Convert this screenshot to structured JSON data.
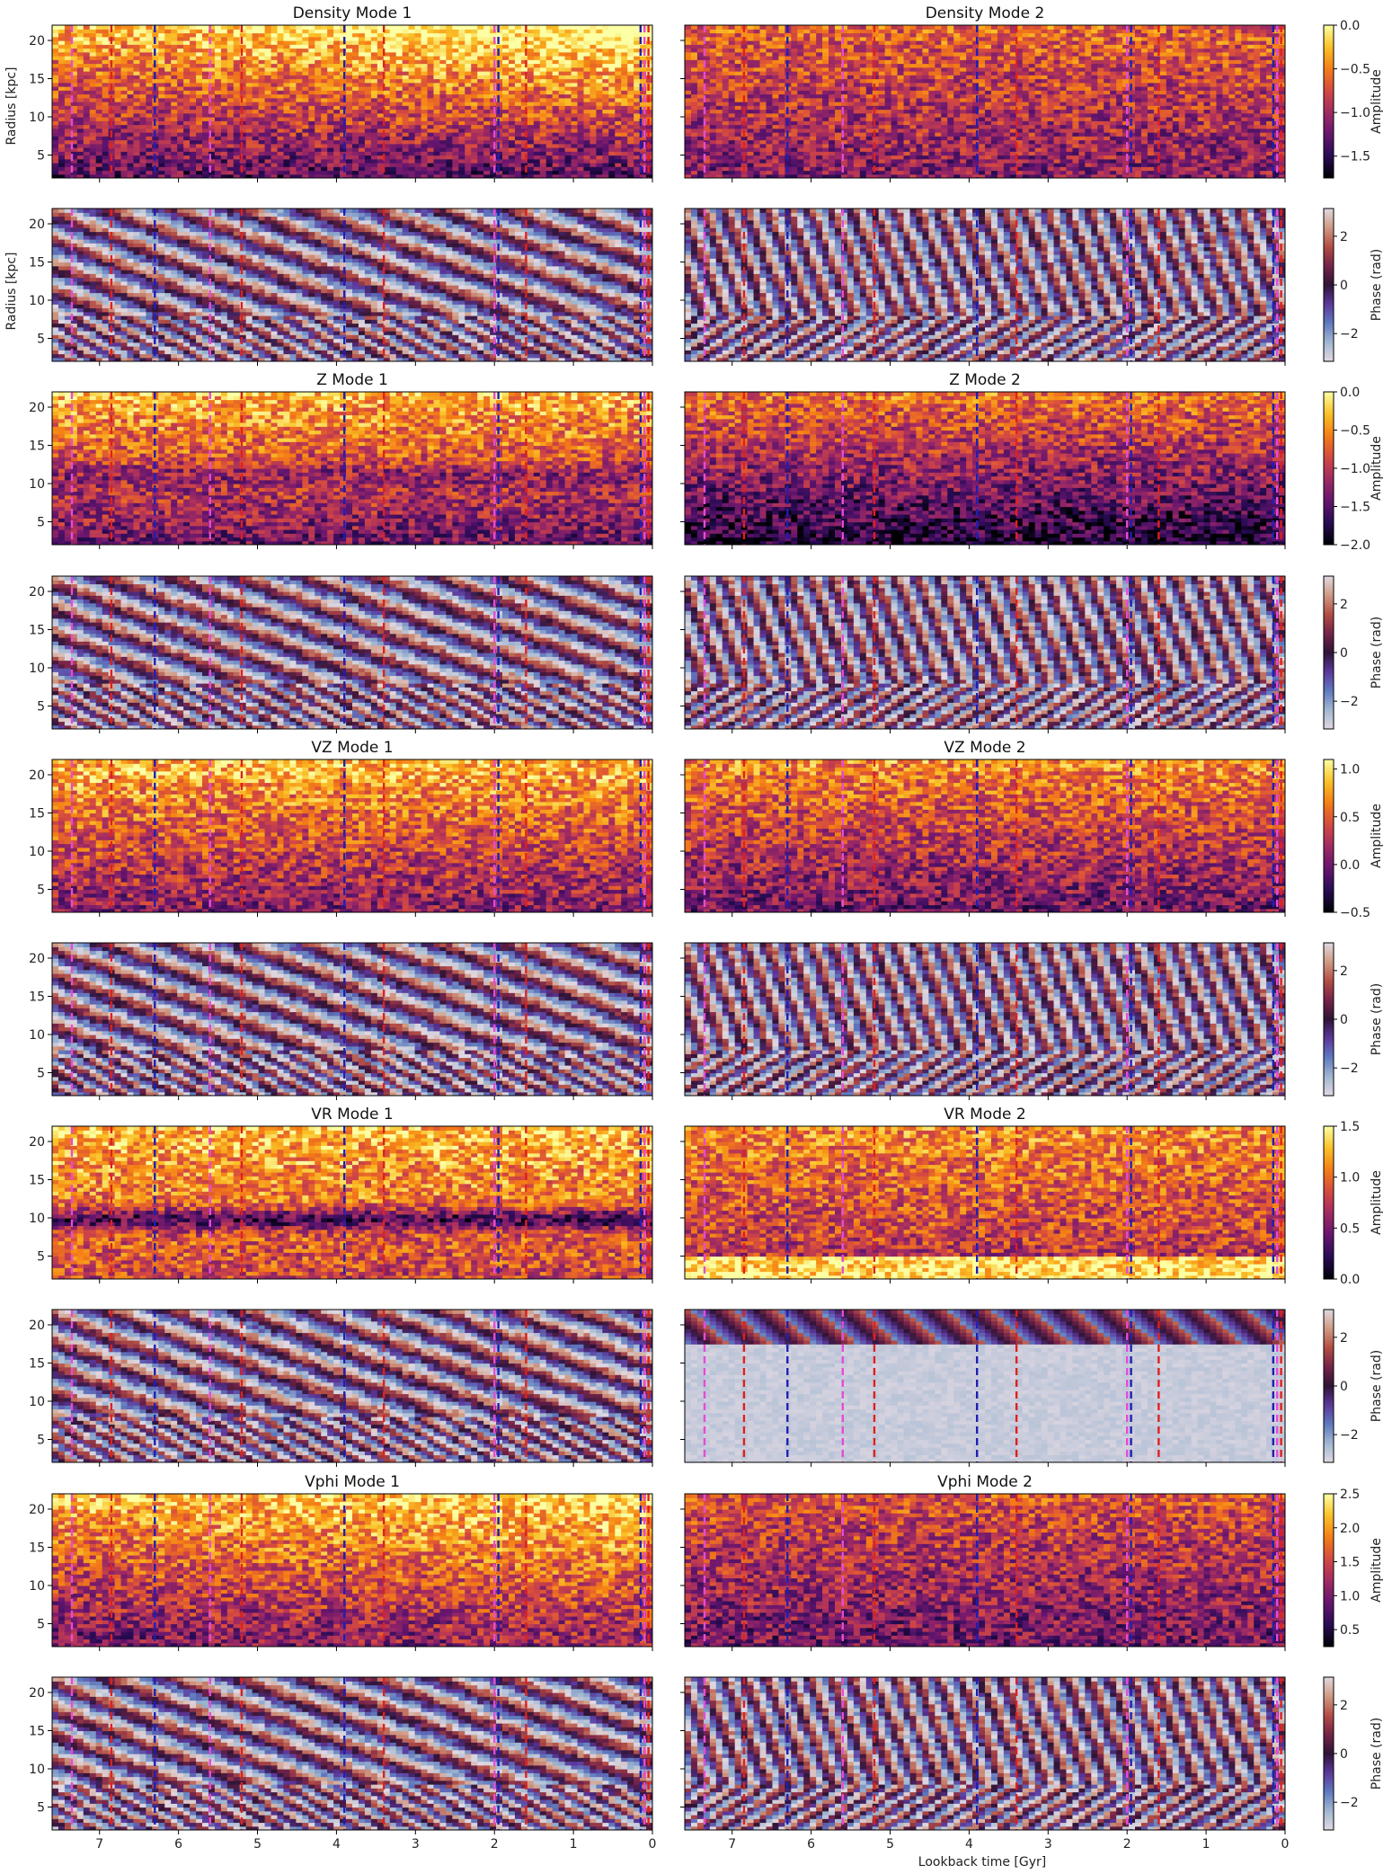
{
  "figure": {
    "xlabel": "Lookback time [Gyr]",
    "ylabel": "Radius [kpc]"
  },
  "chart_data": {
    "type": "heatmap",
    "grid": "off",
    "xlim": [
      7.6,
      0
    ],
    "ylim": [
      2,
      22
    ],
    "xticks": [
      7,
      6,
      5,
      4,
      3,
      2,
      1,
      0
    ],
    "yticks": [
      5,
      10,
      15,
      20
    ],
    "event_lines": {
      "blue": {
        "color": "#1f1fb4",
        "times": [
          6.3,
          3.9,
          1.95,
          0.15
        ]
      },
      "red": {
        "color": "#e0201c",
        "times": [
          6.85,
          5.2,
          3.4,
          1.6,
          0.05
        ]
      },
      "magenta": {
        "color": "#e64bd6",
        "times": [
          7.35,
          5.6,
          2.0,
          0.1
        ]
      }
    },
    "rows": [
      {
        "quantity": "Density",
        "kind": "amplitude",
        "titles": [
          "Density Mode 1",
          "Density Mode 2"
        ],
        "colorbar": {
          "label": "Amplitude",
          "range": [
            -1.75,
            0.0
          ],
          "ticks": [
            "0.0",
            "−0.5",
            "−1.0",
            "−1.5"
          ],
          "tickvals": [
            0.0,
            -0.5,
            -1.0,
            -1.5
          ],
          "cmap": "inferno"
        }
      },
      {
        "quantity": "Density",
        "kind": "phase",
        "titles": [
          "",
          ""
        ],
        "colorbar": {
          "label": "Phase (rad)",
          "range": [
            -3.14,
            3.14
          ],
          "ticks": [
            "2",
            "0",
            "−2"
          ],
          "tickvals": [
            2,
            0,
            -2
          ],
          "cmap": "twilight"
        }
      },
      {
        "quantity": "Z",
        "kind": "amplitude",
        "titles": [
          "Z Mode 1",
          "Z Mode 2"
        ],
        "colorbar": {
          "label": "Amplitude",
          "range": [
            -2.0,
            0.0
          ],
          "ticks": [
            "0.0",
            "−0.5",
            "−1.0",
            "−1.5",
            "−2.0"
          ],
          "tickvals": [
            0.0,
            -0.5,
            -1.0,
            -1.5,
            -2.0
          ],
          "cmap": "inferno"
        }
      },
      {
        "quantity": "Z",
        "kind": "phase",
        "titles": [
          "",
          ""
        ],
        "colorbar": {
          "label": "Phase (rad)",
          "range": [
            -3.14,
            3.14
          ],
          "ticks": [
            "2",
            "0",
            "−2"
          ],
          "tickvals": [
            2,
            0,
            -2
          ],
          "cmap": "twilight"
        }
      },
      {
        "quantity": "VZ",
        "kind": "amplitude",
        "titles": [
          "VZ Mode 1",
          "VZ Mode 2"
        ],
        "colorbar": {
          "label": "Amplitude",
          "range": [
            -0.5,
            1.1
          ],
          "ticks": [
            "1.0",
            "0.5",
            "0.0",
            "−0.5"
          ],
          "tickvals": [
            1.0,
            0.5,
            0.0,
            -0.5
          ],
          "cmap": "inferno"
        }
      },
      {
        "quantity": "VZ",
        "kind": "phase",
        "titles": [
          "",
          ""
        ],
        "colorbar": {
          "label": "Phase (rad)",
          "range": [
            -3.14,
            3.14
          ],
          "ticks": [
            "2",
            "0",
            "−2"
          ],
          "tickvals": [
            2,
            0,
            -2
          ],
          "cmap": "twilight"
        }
      },
      {
        "quantity": "VR",
        "kind": "amplitude",
        "titles": [
          "VR Mode 1",
          "VR Mode 2"
        ],
        "colorbar": {
          "label": "Amplitude",
          "range": [
            0.0,
            1.5
          ],
          "ticks": [
            "1.5",
            "1.0",
            "0.5",
            "0.0"
          ],
          "tickvals": [
            1.5,
            1.0,
            0.5,
            0.0
          ],
          "cmap": "inferno"
        }
      },
      {
        "quantity": "VR",
        "kind": "phase",
        "titles": [
          "",
          ""
        ],
        "colorbar": {
          "label": "Phase (rad)",
          "range": [
            -3.14,
            3.14
          ],
          "ticks": [
            "2",
            "0",
            "−2"
          ],
          "tickvals": [
            2,
            0,
            -2
          ],
          "cmap": "twilight"
        }
      },
      {
        "quantity": "Vphi",
        "kind": "amplitude",
        "titles": [
          "Vphi Mode 1",
          "Vphi Mode 2"
        ],
        "colorbar": {
          "label": "Amplitude",
          "range": [
            0.25,
            2.5
          ],
          "ticks": [
            "2.5",
            "2.0",
            "1.5",
            "1.0",
            "0.5"
          ],
          "tickvals": [
            2.5,
            2.0,
            1.5,
            1.0,
            0.5
          ],
          "cmap": "inferno"
        }
      },
      {
        "quantity": "Vphi",
        "kind": "phase",
        "titles": [
          "",
          ""
        ],
        "colorbar": {
          "label": "Phase (rad)",
          "range": [
            -3.14,
            3.14
          ],
          "ticks": [
            "2",
            "0",
            "−2"
          ],
          "tickvals": [
            2,
            0,
            -2
          ],
          "cmap": "twilight"
        }
      }
    ]
  }
}
